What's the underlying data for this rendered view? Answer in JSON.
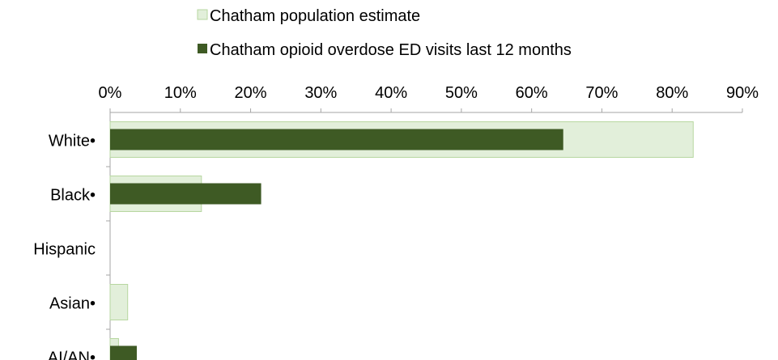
{
  "chart_data": {
    "type": "bar",
    "orientation": "horizontal",
    "title": "",
    "xlabel": "",
    "ylabel": "",
    "categories": [
      "White•",
      "Black•",
      "Hispanic",
      "Asian•",
      "AI/AN•"
    ],
    "series": [
      {
        "name": "Chatham population estimate",
        "color": "#e2efda",
        "stroke": "#b7d7a0",
        "values": [
          83,
          13,
          0,
          2.5,
          1.2
        ]
      },
      {
        "name": "Chatham opioid overdose ED visits last 12 months",
        "color": "#3e5a24",
        "values": [
          64.5,
          21.5,
          0,
          0,
          3.8
        ]
      }
    ],
    "xlim": [
      0,
      90
    ],
    "xticks": [
      0,
      10,
      20,
      30,
      40,
      50,
      60,
      70,
      80,
      90
    ],
    "tick_suffix": "%",
    "axis_position": "top",
    "grid": false,
    "legend_position": "top"
  }
}
